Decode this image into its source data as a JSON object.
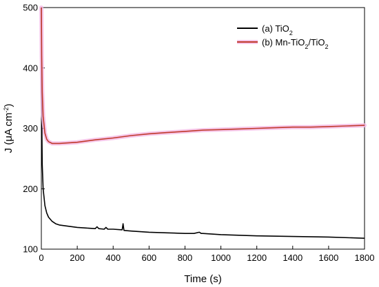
{
  "chart_data": {
    "type": "line",
    "xlabel": "Time (s)",
    "ylabel": {
      "base": "J (μA cm",
      "sup": "-2",
      "close": ")"
    },
    "xlim": [
      0,
      1800
    ],
    "ylim": [
      100,
      500
    ],
    "xticks": [
      0,
      200,
      400,
      600,
      800,
      1000,
      1200,
      1400,
      1600,
      1800
    ],
    "yticks": [
      100,
      200,
      300,
      400,
      500
    ],
    "legend_position": "top-right",
    "series": [
      {
        "name": {
          "prefix": "(a) TiO",
          "sub": "2",
          "rest": "",
          "sub2": ""
        },
        "color": "#000000",
        "x": [
          0,
          2,
          5,
          10,
          20,
          30,
          40,
          60,
          80,
          100,
          150,
          200,
          250,
          300,
          310,
          320,
          350,
          360,
          370,
          400,
          450,
          455,
          460,
          500,
          600,
          700,
          800,
          850,
          880,
          890,
          900,
          950,
          1000,
          1100,
          1200,
          1400,
          1600,
          1800
        ],
        "values": [
          500,
          330,
          240,
          200,
          172,
          160,
          153,
          146,
          142,
          140,
          138,
          136,
          135,
          134,
          137,
          134,
          133,
          136,
          133,
          133,
          132,
          142,
          131,
          130,
          128,
          127,
          126,
          126,
          128,
          126,
          126,
          125,
          124,
          123,
          122,
          121,
          120,
          118
        ]
      },
      {
        "name": {
          "prefix": "(b) Mn-TiO",
          "sub": "2",
          "rest": "/TiO",
          "sub2": "2"
        },
        "color": "#c0392b",
        "band_color": "#f4b8e4",
        "x": [
          0,
          2,
          5,
          10,
          20,
          30,
          40,
          60,
          80,
          100,
          150,
          200,
          250,
          300,
          400,
          500,
          600,
          700,
          800,
          900,
          1000,
          1100,
          1200,
          1300,
          1400,
          1500,
          1600,
          1700,
          1800
        ],
        "values": [
          500,
          420,
          360,
          320,
          292,
          282,
          278,
          275,
          275,
          275,
          276,
          277,
          279,
          281,
          284,
          288,
          291,
          293,
          295,
          297,
          298,
          299,
          300,
          301,
          302,
          302,
          303,
          304,
          305
        ]
      }
    ]
  }
}
